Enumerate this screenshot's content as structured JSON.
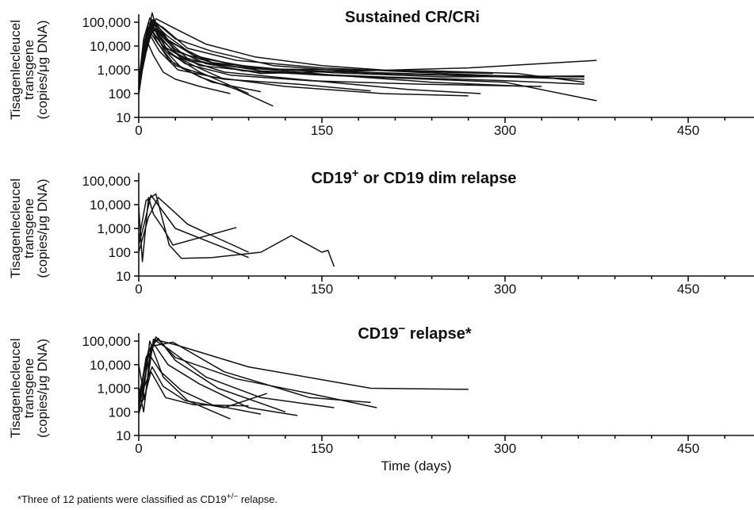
{
  "chart_data": [
    {
      "type": "line",
      "title": "Sustained CR/CRi",
      "title_superscript": "",
      "title_suffix": "",
      "ylabel_lines": [
        "Tisagenlecleucel",
        "transgene",
        "(copies/μg DNA)"
      ],
      "xlabel": "",
      "y_scale": "log",
      "ylim": [
        10,
        300000
      ],
      "xlim": [
        0,
        500
      ],
      "y_ticks": [
        10,
        100,
        1000,
        10000,
        100000
      ],
      "y_tick_labels": [
        "10",
        "100",
        "1,000",
        "10,000",
        "100,000"
      ],
      "x_ticks": [
        0,
        150,
        300,
        450
      ],
      "x_tick_labels": [
        "0",
        "150",
        "300",
        "450"
      ],
      "series": [
        {
          "x": [
            0,
            4,
            9,
            15,
            30,
            60,
            110,
            180,
            260,
            365
          ],
          "y": [
            300,
            20000,
            150000,
            90000,
            20000,
            6000,
            1500,
            800,
            600,
            500
          ]
        },
        {
          "x": [
            0,
            5,
            10,
            20,
            40,
            80,
            150,
            250,
            360
          ],
          "y": [
            200,
            10000,
            120000,
            60000,
            8000,
            2500,
            1200,
            700,
            400
          ]
        },
        {
          "x": [
            0,
            3,
            8,
            14,
            28,
            50,
            100,
            200,
            300,
            365
          ],
          "y": [
            150,
            5000,
            60000,
            40000,
            6000,
            1500,
            800,
            500,
            350,
            250
          ]
        },
        {
          "x": [
            0,
            6,
            12,
            22,
            45,
            90,
            160,
            240,
            320
          ],
          "y": [
            400,
            30000,
            100000,
            30000,
            4000,
            1200,
            600,
            300,
            200
          ]
        },
        {
          "x": [
            0,
            4,
            10,
            18,
            35,
            70,
            130,
            220,
            280
          ],
          "y": [
            100,
            8000,
            80000,
            20000,
            3000,
            800,
            400,
            150,
            100
          ]
        },
        {
          "x": [
            0,
            7,
            12,
            25,
            60,
            120,
            200,
            365
          ],
          "y": [
            500,
            50000,
            130000,
            15000,
            2000,
            1000,
            700,
            400
          ]
        },
        {
          "x": [
            0,
            5,
            9,
            16,
            30,
            60,
            120,
            200,
            270
          ],
          "y": [
            200,
            3000,
            40000,
            12000,
            1500,
            500,
            200,
            100,
            80
          ]
        },
        {
          "x": [
            0,
            3,
            11,
            20,
            40,
            85,
            150,
            300,
            375
          ],
          "y": [
            120,
            2000,
            70000,
            25000,
            3000,
            900,
            600,
            300,
            50
          ]
        },
        {
          "x": [
            0,
            6,
            13,
            30,
            55,
            100,
            180,
            270,
            375
          ],
          "y": [
            300,
            15000,
            50000,
            7000,
            1800,
            700,
            900,
            1200,
            2500
          ]
        },
        {
          "x": [
            0,
            4,
            8,
            15,
            25,
            50,
            80,
            110
          ],
          "y": [
            150,
            7000,
            100000,
            15000,
            2500,
            500,
            150,
            30
          ]
        },
        {
          "x": [
            0,
            5,
            12,
            25,
            50,
            90
          ],
          "y": [
            200,
            20000,
            60000,
            5000,
            800,
            100
          ]
        },
        {
          "x": [
            0,
            6,
            11,
            20,
            35,
            60,
            100
          ],
          "y": [
            250,
            10000,
            90000,
            8000,
            1200,
            300,
            120
          ]
        },
        {
          "x": [
            0,
            4,
            10,
            20,
            40,
            90,
            160,
            240,
            310,
            365
          ],
          "y": [
            180,
            6000,
            45000,
            10000,
            2500,
            1100,
            1000,
            900,
            700,
            300
          ]
        },
        {
          "x": [
            0,
            5,
            10,
            18,
            30,
            60,
            100,
            140
          ],
          "y": [
            220,
            9000,
            110000,
            35000,
            6000,
            2000,
            900,
            700
          ]
        },
        {
          "x": [
            0,
            3,
            7,
            12,
            20,
            30,
            50,
            75
          ],
          "y": [
            90,
            1000,
            15000,
            4000,
            800,
            400,
            200,
            100
          ]
        },
        {
          "x": [
            0,
            8,
            11,
            16,
            25,
            45,
            70
          ],
          "y": [
            150,
            40000,
            250000,
            30000,
            5000,
            1500,
            400
          ]
        },
        {
          "x": [
            0,
            9,
            14,
            28,
            55,
            95,
            150,
            210,
            290
          ],
          "y": [
            400,
            20000,
            140000,
            60000,
            12000,
            3500,
            1500,
            900,
            700
          ]
        },
        {
          "x": [
            0,
            4,
            9,
            17,
            32,
            70,
            130,
            190
          ],
          "y": [
            120,
            4000,
            30000,
            6000,
            1000,
            400,
            250,
            130
          ]
        },
        {
          "x": [
            0,
            5,
            10,
            20,
            38,
            75,
            140,
            230,
            330
          ],
          "y": [
            160,
            8000,
            55000,
            9000,
            1800,
            600,
            350,
            250,
            200
          ]
        },
        {
          "x": [
            0,
            6,
            12,
            24,
            48,
            96,
            160,
            250,
            365
          ],
          "y": [
            280,
            12000,
            85000,
            18000,
            3200,
            1200,
            750,
            500,
            550
          ]
        }
      ]
    },
    {
      "type": "line",
      "title": "CD19",
      "title_superscript": "+",
      "title_suffix": " or CD19 dim relapse",
      "ylabel_lines": [
        "Tisagenlecleucel",
        "transgene",
        "(copies/μg DNA)"
      ],
      "xlabel": "",
      "y_scale": "log",
      "ylim": [
        10,
        300000
      ],
      "xlim": [
        0,
        500
      ],
      "y_ticks": [
        10,
        100,
        1000,
        10000,
        100000
      ],
      "y_tick_labels": [
        "10",
        "100",
        "1,000",
        "10,000",
        "100,000"
      ],
      "x_ticks": [
        0,
        150,
        300,
        450
      ],
      "x_tick_labels": [
        "0",
        "150",
        "300",
        "450"
      ],
      "series": [
        {
          "x": [
            0,
            3,
            8,
            12,
            20,
            28,
            80
          ],
          "y": [
            8000,
            40,
            20000,
            4000,
            1000,
            200,
            1100
          ]
        },
        {
          "x": [
            0,
            5,
            10,
            20,
            30,
            90
          ],
          "y": [
            200,
            2000,
            25000,
            5000,
            1000,
            60
          ]
        },
        {
          "x": [
            0,
            6,
            14,
            25,
            35,
            60,
            100,
            125,
            150,
            155,
            160
          ],
          "y": [
            300,
            15000,
            28000,
            200,
            55,
            60,
            100,
            500,
            100,
            120,
            25
          ]
        },
        {
          "x": [
            0,
            8,
            16,
            30,
            40,
            60,
            90
          ],
          "y": [
            100,
            3000,
            20000,
            4500,
            1500,
            500,
            100
          ]
        }
      ]
    },
    {
      "type": "line",
      "title": "CD19",
      "title_superscript": "−",
      "title_suffix": " relapse*",
      "ylabel_lines": [
        "Tisagenlecleucel",
        "transgene",
        "(copies/μg DNA)"
      ],
      "xlabel": "Time (days)",
      "y_scale": "log",
      "ylim": [
        10,
        300000
      ],
      "xlim": [
        0,
        500
      ],
      "y_ticks": [
        10,
        100,
        1000,
        10000,
        100000
      ],
      "y_tick_labels": [
        "10",
        "100",
        "1,000",
        "10,000",
        "100,000"
      ],
      "x_ticks": [
        0,
        150,
        300,
        450
      ],
      "x_tick_labels": [
        "0",
        "150",
        "300",
        "450"
      ],
      "series": [
        {
          "x": [
            0,
            5,
            12,
            30,
            90,
            190,
            270
          ],
          "y": [
            10000,
            300,
            120000,
            70000,
            8000,
            1000,
            900
          ]
        },
        {
          "x": [
            0,
            4,
            10,
            28,
            70,
            140,
            190
          ],
          "y": [
            1000,
            100,
            60000,
            90000,
            5000,
            400,
            250
          ]
        },
        {
          "x": [
            0,
            6,
            14,
            30,
            80,
            140,
            195
          ],
          "y": [
            300,
            5000,
            150000,
            20000,
            2500,
            600,
            150
          ]
        },
        {
          "x": [
            0,
            5,
            9,
            20,
            40,
            75
          ],
          "y": [
            200,
            2000,
            100000,
            3000,
            300,
            50
          ]
        },
        {
          "x": [
            0,
            3,
            8,
            18,
            35,
            60,
            100
          ],
          "y": [
            80,
            300,
            30000,
            5000,
            800,
            200,
            80
          ]
        },
        {
          "x": [
            0,
            7,
            12,
            24,
            50,
            90,
            130
          ],
          "y": [
            500,
            15000,
            80000,
            10000,
            1500,
            150,
            70
          ]
        },
        {
          "x": [
            0,
            4,
            11,
            20,
            38,
            70,
            105
          ],
          "y": [
            150,
            1000,
            8000,
            1200,
            300,
            150,
            600
          ]
        },
        {
          "x": [
            0,
            6,
            13,
            26,
            55,
            100,
            160
          ],
          "y": [
            250,
            20000,
            110000,
            40000,
            3000,
            400,
            150
          ]
        },
        {
          "x": [
            0,
            5,
            10,
            22,
            45,
            90
          ],
          "y": [
            120,
            500,
            5000,
            400,
            200,
            180
          ]
        },
        {
          "x": [
            0,
            8,
            16,
            30,
            65,
            120
          ],
          "y": [
            400,
            40000,
            130000,
            15000,
            1000,
            100
          ]
        }
      ]
    }
  ],
  "footnote": {
    "prefix": "*Three of 12 patients were classified as CD19",
    "superscript": "+/−",
    "suffix": " relapse."
  }
}
